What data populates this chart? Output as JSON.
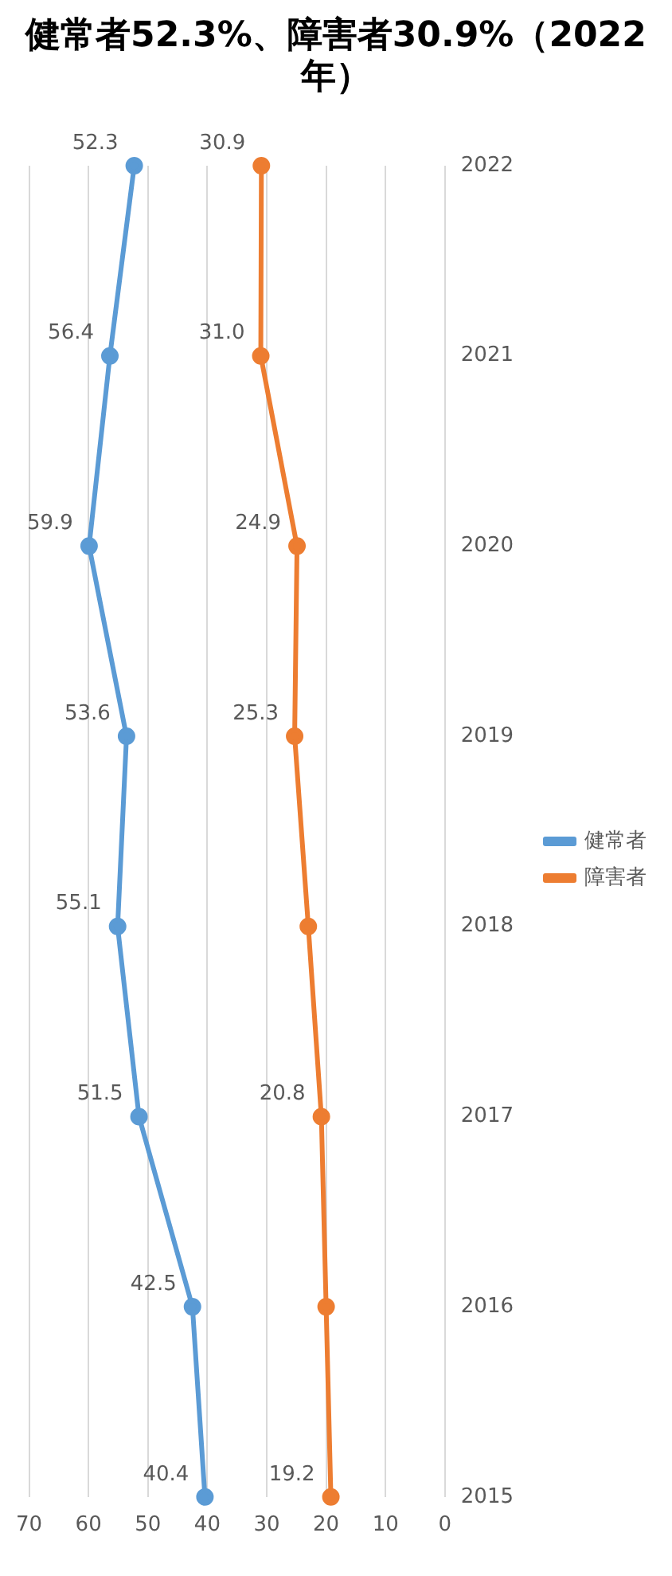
{
  "chart_data": {
    "type": "line",
    "title": "健常者52.3%、障害者30.9%（2022年）",
    "orientation": "horizontal",
    "categories": [
      "2022",
      "2021",
      "2020",
      "2019",
      "2018",
      "2017",
      "2016",
      "2015"
    ],
    "series": [
      {
        "name": "健常者",
        "color": "#5b9bd5",
        "values": [
          52.3,
          56.4,
          59.9,
          53.6,
          55.1,
          51.5,
          42.5,
          40.4
        ],
        "value_labels": [
          "52.3",
          "56.4",
          "59.9",
          "53.6",
          "55.1",
          "51.5",
          "42.5",
          "40.4"
        ]
      },
      {
        "name": "障害者",
        "color": "#ed7d31",
        "values": [
          30.9,
          31.0,
          24.9,
          25.3,
          23.0,
          20.8,
          20.0,
          19.2
        ],
        "value_labels": [
          "30.9",
          "31.0",
          "24.9",
          "25.3",
          null,
          "20.8",
          null,
          "19.2"
        ]
      }
    ],
    "xlim": [
      70,
      0
    ],
    "xticks": [
      70,
      60,
      50,
      40,
      30,
      20,
      10,
      0
    ],
    "grid": "x",
    "legend": "right",
    "marker": "circle",
    "line_style": "solid"
  }
}
